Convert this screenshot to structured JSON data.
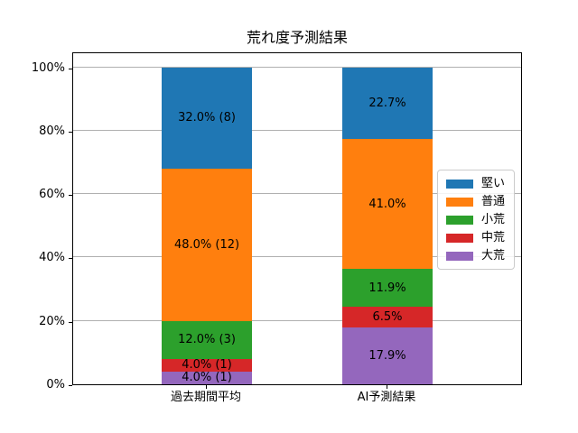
{
  "chart_data": {
    "type": "bar",
    "stacked": true,
    "title": "荒れ度予測結果",
    "categories": [
      "過去期間平均",
      "AI予測結果"
    ],
    "series": [
      {
        "name": "大荒",
        "color": "#9467bd",
        "values": [
          4.0,
          17.9
        ],
        "labels": [
          "4.0% (1)",
          "17.9%"
        ]
      },
      {
        "name": "中荒",
        "color": "#d62728",
        "values": [
          4.0,
          6.5
        ],
        "labels": [
          "4.0% (1)",
          "6.5%"
        ]
      },
      {
        "name": "小荒",
        "color": "#2ca02c",
        "values": [
          12.0,
          11.9
        ],
        "labels": [
          "12.0% (3)",
          "11.9%"
        ]
      },
      {
        "name": "普通",
        "color": "#ff7f0e",
        "values": [
          48.0,
          41.0
        ],
        "labels": [
          "48.0% (12)",
          "41.0%"
        ]
      },
      {
        "name": "堅い",
        "color": "#1f77b4",
        "values": [
          32.0,
          22.7
        ],
        "labels": [
          "32.0% (8)",
          "22.7%"
        ]
      }
    ],
    "legend": {
      "position": "center right",
      "entries": [
        "堅い",
        "普通",
        "小荒",
        "中荒",
        "大荒"
      ]
    },
    "y_axis": {
      "ylim": [
        0,
        105
      ],
      "grid": true,
      "gridline_color": "#b0b0b0",
      "ticks": [
        {
          "value": 0,
          "label": "0%"
        },
        {
          "value": 20,
          "label": "20%"
        },
        {
          "value": 40,
          "label": "40%"
        },
        {
          "value": 60,
          "label": "60%"
        },
        {
          "value": 80,
          "label": "80%"
        },
        {
          "value": 100,
          "label": "100%"
        }
      ]
    },
    "xlabel": "",
    "ylabel": ""
  }
}
